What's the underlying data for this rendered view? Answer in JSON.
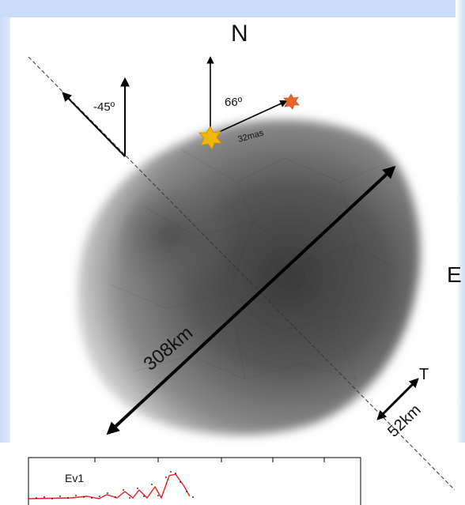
{
  "labels": {
    "north": "N",
    "east": "E",
    "angle_left": "-45º",
    "angle_right": "66º",
    "separation": "32mas",
    "length_long": "308km",
    "length_short": "52km",
    "short_axis_end": "T",
    "inset_event": "Ev1"
  },
  "colors": {
    "body_dark": "#3c3c3c",
    "body_light": "#bdbdbd",
    "star_primary": "#f2b705",
    "star_secondary": "#e8632a",
    "lightcurve_fit": "#e02020",
    "background_panel": "#c9dcf8"
  },
  "icons": {
    "star_primary": "star-icon",
    "star_secondary": "star-icon"
  }
}
